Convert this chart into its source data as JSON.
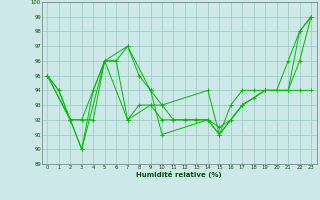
{
  "title": "",
  "xlabel": "Humidité relative (%)",
  "ylabel": "",
  "bg_color": "#cce8e8",
  "grid_color": "#99ccbb",
  "line_color": "#00bb00",
  "series": [
    {
      "x": [
        0,
        1,
        2,
        3,
        4,
        5,
        6,
        7,
        8,
        9,
        10,
        11,
        12,
        13,
        14,
        15,
        16,
        17,
        18,
        19,
        20,
        21,
        22,
        23
      ],
      "y": [
        95,
        94,
        92,
        90,
        94,
        96,
        96,
        97,
        95,
        94,
        93,
        92,
        92,
        92,
        92,
        91,
        93,
        94,
        94,
        94,
        94,
        96,
        98,
        99
      ]
    },
    {
      "x": [
        0,
        1,
        2,
        3,
        4,
        5,
        6,
        7,
        8,
        9,
        10,
        11,
        12,
        13,
        14,
        15,
        16,
        17,
        18,
        19,
        20,
        21,
        22,
        23
      ],
      "y": [
        95,
        94,
        92,
        92,
        92,
        96,
        96,
        92,
        93,
        93,
        92,
        92,
        92,
        92,
        92,
        91.5,
        92,
        93,
        93.5,
        94,
        94,
        94,
        94,
        94
      ]
    },
    {
      "x": [
        0,
        2,
        3,
        5,
        7,
        9,
        10,
        14,
        15,
        16,
        17,
        19,
        21,
        22,
        23
      ],
      "y": [
        95,
        92,
        92,
        96,
        92,
        93,
        93,
        94,
        91,
        92,
        93,
        94,
        94,
        96,
        99
      ]
    },
    {
      "x": [
        0,
        2,
        3,
        5,
        7,
        9,
        10,
        14,
        15,
        16,
        17,
        19,
        21,
        22,
        23
      ],
      "y": [
        95,
        92,
        90,
        96,
        97,
        94,
        91,
        92,
        91,
        92,
        93,
        94,
        94,
        98,
        99
      ]
    }
  ],
  "xlim": [
    -0.5,
    23.5
  ],
  "ylim": [
    89,
    100
  ],
  "yticks": [
    89,
    90,
    91,
    92,
    93,
    94,
    95,
    96,
    97,
    98,
    99,
    100
  ],
  "xticks": [
    0,
    1,
    2,
    3,
    4,
    5,
    6,
    7,
    8,
    9,
    10,
    11,
    12,
    13,
    14,
    15,
    16,
    17,
    18,
    19,
    20,
    21,
    22,
    23
  ]
}
